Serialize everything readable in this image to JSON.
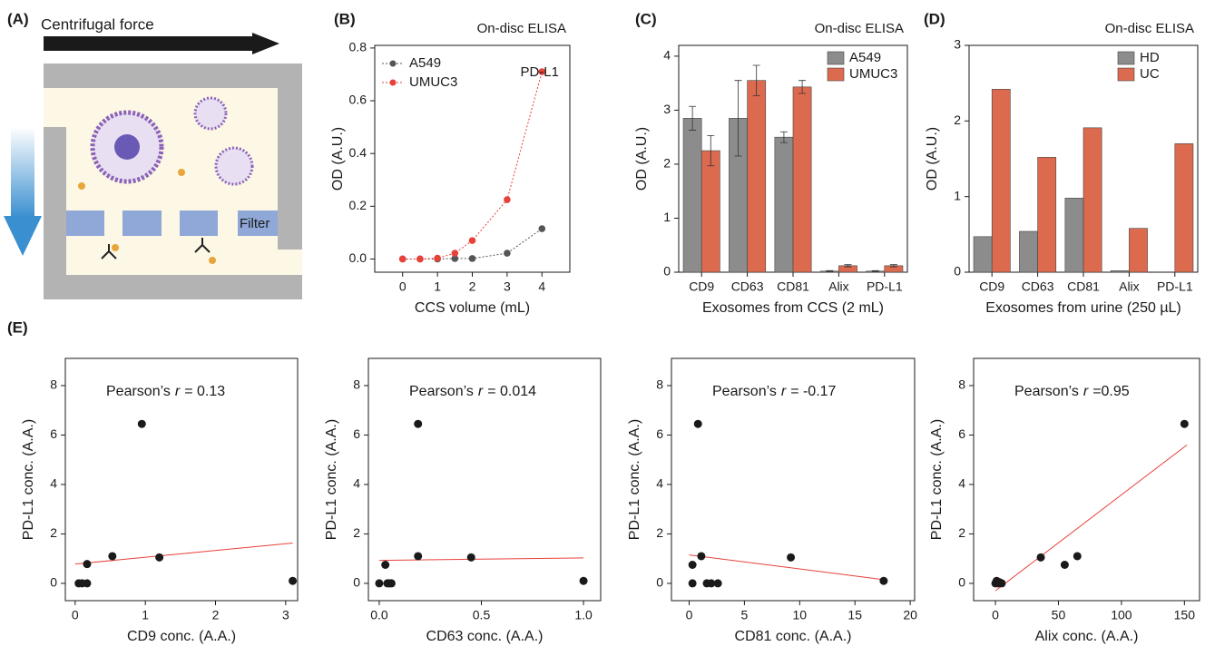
{
  "panel_labels": [
    "(A)",
    "(B)",
    "(C)",
    "(D)",
    "(E)"
  ],
  "diagram": {
    "force_label": "Centrifugal force",
    "filter_label": "Filter"
  },
  "chart_data": [
    {
      "type": "line",
      "title": "On-disc ELISA",
      "annotation": "PD-L1",
      "x_label": "CCS volume (mL)",
      "y_label": "OD (A.U.)",
      "x": [
        0,
        0.5,
        1,
        1.5,
        2,
        3,
        4
      ],
      "series": [
        {
          "name": "A549",
          "color": "#555555",
          "values": [
            0,
            0,
            0,
            0.002,
            0.002,
            0.022,
            0.115
          ]
        },
        {
          "name": "UMUC3",
          "color": "#e8413a",
          "values": [
            0,
            0,
            0.003,
            0.022,
            0.07,
            0.225,
            0.71
          ]
        }
      ],
      "xlim": [
        -0.8,
        4.8
      ],
      "xticks": [
        0,
        1,
        2,
        3,
        4
      ],
      "ylim": [
        -0.05,
        0.81
      ],
      "yticks": [
        {
          "value": 0,
          "label": "0.0"
        },
        0.2,
        0.4,
        0.6,
        0.8
      ],
      "legend": "upper left"
    },
    {
      "type": "bar",
      "title": "On-disc ELISA",
      "x_label": "Exosomes from CCS (2 mL)",
      "y_label": "OD (A.U.)",
      "categories": [
        "CD9",
        "CD63",
        "CD81",
        "Alix",
        "PD-L1"
      ],
      "series": [
        {
          "name": "A549",
          "color": "#8c8c8c",
          "values": [
            2.85,
            2.85,
            2.5,
            0.02,
            0.02
          ],
          "errors": [
            0.22,
            0.7,
            0.1,
            0.01,
            0.01
          ]
        },
        {
          "name": "UMUC3",
          "color": "#dc6a4f",
          "values": [
            2.25,
            3.55,
            3.43,
            0.12,
            0.12
          ],
          "errors": [
            0.28,
            0.28,
            0.12,
            0.02,
            0.02
          ]
        }
      ],
      "ylim": [
        0,
        4.2
      ],
      "yticks": [
        0,
        1,
        2,
        3,
        4
      ],
      "legend": "upper right"
    },
    {
      "type": "bar",
      "title": "On-disc ELISA",
      "x_label": "Exosomes from urine (250 µL)",
      "y_label": "OD (A.U.)",
      "categories": [
        "CD9",
        "CD63",
        "CD81",
        "Alix",
        "PD-L1"
      ],
      "series": [
        {
          "name": "HD",
          "color": "#8c8c8c",
          "values": [
            0.47,
            0.54,
            0.98,
            0.02,
            0
          ]
        },
        {
          "name": "UC",
          "color": "#dc6a4f",
          "values": [
            2.42,
            1.52,
            1.91,
            0.58,
            1.7
          ]
        }
      ],
      "ylim": [
        0,
        3
      ],
      "yticks": [
        0,
        1,
        2,
        3
      ],
      "legend": "upper right"
    },
    {
      "type": "scatter",
      "annotation": {
        "prefix": "Pearson’s",
        "symbol": "r",
        "value": "= 0.13"
      },
      "x_label": "CD9 conc. (A.A.)",
      "y_label": "PD-L1 conc. (A.A.)",
      "points": {
        "x": [
          0.05,
          0.1,
          0.17,
          0.17,
          0.53,
          1.2,
          0.95,
          3.1
        ],
        "y": [
          0,
          0,
          0,
          0.78,
          1.1,
          1.05,
          6.45,
          0.1
        ]
      },
      "fit": {
        "x": [
          0,
          3.1
        ],
        "y": [
          0.78,
          1.63
        ]
      },
      "color": "#1a1a1a",
      "fit_color": "#e8413a",
      "xlim": [
        -0.14,
        3.17
      ],
      "xticks": [
        0,
        1,
        2,
        3
      ],
      "ylim": [
        -0.7,
        9.1
      ],
      "yticks": [
        0,
        2,
        4,
        6,
        8
      ]
    },
    {
      "type": "scatter",
      "annotation": {
        "prefix": "Pearson’s",
        "symbol": "r",
        "value": "= 0.014"
      },
      "x_label": "CD63 conc. (A.A.)",
      "y_label": "PD-L1 conc. (A.A.)",
      "points": {
        "x": [
          0,
          0.04,
          0.05,
          0.06,
          0.03,
          0.19,
          0.45,
          0.19,
          1.0
        ],
        "y": [
          0,
          0,
          0,
          0,
          0.75,
          1.1,
          1.05,
          6.45,
          0.1
        ]
      },
      "fit": {
        "x": [
          0,
          1.0
        ],
        "y": [
          0.93,
          1.03
        ]
      },
      "color": "#1a1a1a",
      "fit_color": "#e8413a",
      "xlim": [
        -0.053,
        1.084
      ],
      "xticks": [
        {
          "value": 0,
          "label": "0.0"
        },
        0.5,
        {
          "value": 1,
          "label": "1.0"
        }
      ],
      "ylim": [
        -0.7,
        9.1
      ],
      "yticks": [
        0,
        2,
        4,
        6,
        8
      ]
    },
    {
      "type": "scatter",
      "annotation": {
        "prefix": "Pearson’s",
        "symbol": "r",
        "value": "= -0.17"
      },
      "x_label": "CD81 conc. (A.A.)",
      "y_label": "PD-L1 conc. (A.A.)",
      "points": {
        "x": [
          0.3,
          0.3,
          1.1,
          0.8,
          1.6,
          2,
          2.6,
          9.2,
          17.6
        ],
        "y": [
          0.75,
          0,
          1.1,
          6.45,
          0,
          0,
          0,
          1.05,
          0.1
        ]
      },
      "fit": {
        "x": [
          0,
          17.6
        ],
        "y": [
          1.15,
          0.15
        ]
      },
      "color": "#1a1a1a",
      "fit_color": "#e8413a",
      "xlim": [
        -1.6,
        20.4
      ],
      "xticks": [
        0,
        5,
        10,
        15,
        20
      ],
      "ylim": [
        -0.7,
        9.1
      ],
      "yticks": [
        0,
        2,
        4,
        6,
        8
      ]
    },
    {
      "type": "scatter",
      "annotation": {
        "prefix": "Pearson’s",
        "symbol": "r",
        "value": "=0.95"
      },
      "x_label": "Alix conc. (A.A.)",
      "y_label": "PD-L1 conc. (A.A.)",
      "points": {
        "x": [
          0,
          1,
          2,
          5,
          3,
          36,
          55,
          65,
          150
        ],
        "y": [
          0,
          0.1,
          0,
          0,
          0.05,
          1.05,
          0.75,
          1.1,
          6.45
        ]
      },
      "fit": {
        "x": [
          0,
          152
        ],
        "y": [
          -0.3,
          5.6
        ]
      },
      "color": "#1a1a1a",
      "fit_color": "#e8413a",
      "xlim": [
        -17.3,
        162
      ],
      "xticks": [
        0,
        50,
        100,
        150
      ],
      "ylim": [
        -0.7,
        9.1
      ],
      "yticks": [
        0,
        2,
        4,
        6,
        8
      ]
    }
  ]
}
